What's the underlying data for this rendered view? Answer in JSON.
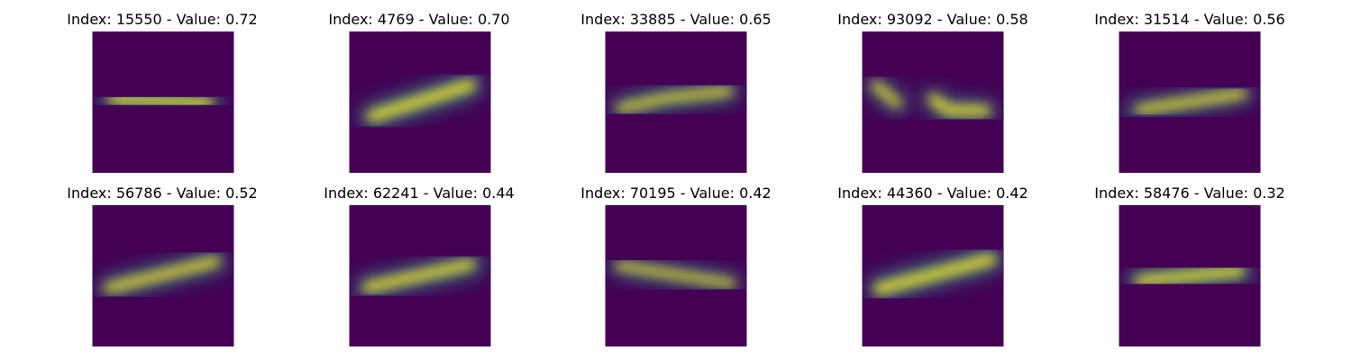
{
  "figure": {
    "colormap": "viridis",
    "background": "#ffffff",
    "image_background": "#440154",
    "panels": [
      {
        "title": "Index: 15550 - Value: 0.72",
        "index": 15550,
        "value": 0.72
      },
      {
        "title": "Index: 4769 - Value: 0.70",
        "index": 4769,
        "value": 0.7
      },
      {
        "title": "Index: 33885 - Value: 0.65",
        "index": 33885,
        "value": 0.65
      },
      {
        "title": "Index: 93092 - Value: 0.58",
        "index": 93092,
        "value": 0.58
      },
      {
        "title": "Index: 31514 - Value: 0.56",
        "index": 31514,
        "value": 0.56
      },
      {
        "title": "Index: 56786 - Value: 0.52",
        "index": 56786,
        "value": 0.52
      },
      {
        "title": "Index: 62241 - Value: 0.44",
        "index": 62241,
        "value": 0.44
      },
      {
        "title": "Index: 70195 - Value: 0.42",
        "index": 70195,
        "value": 0.42
      },
      {
        "title": "Index: 44360 - Value: 0.42",
        "index": 44360,
        "value": 0.42
      },
      {
        "title": "Index: 58476 - Value: 0.32",
        "index": 58476,
        "value": 0.32
      }
    ]
  }
}
